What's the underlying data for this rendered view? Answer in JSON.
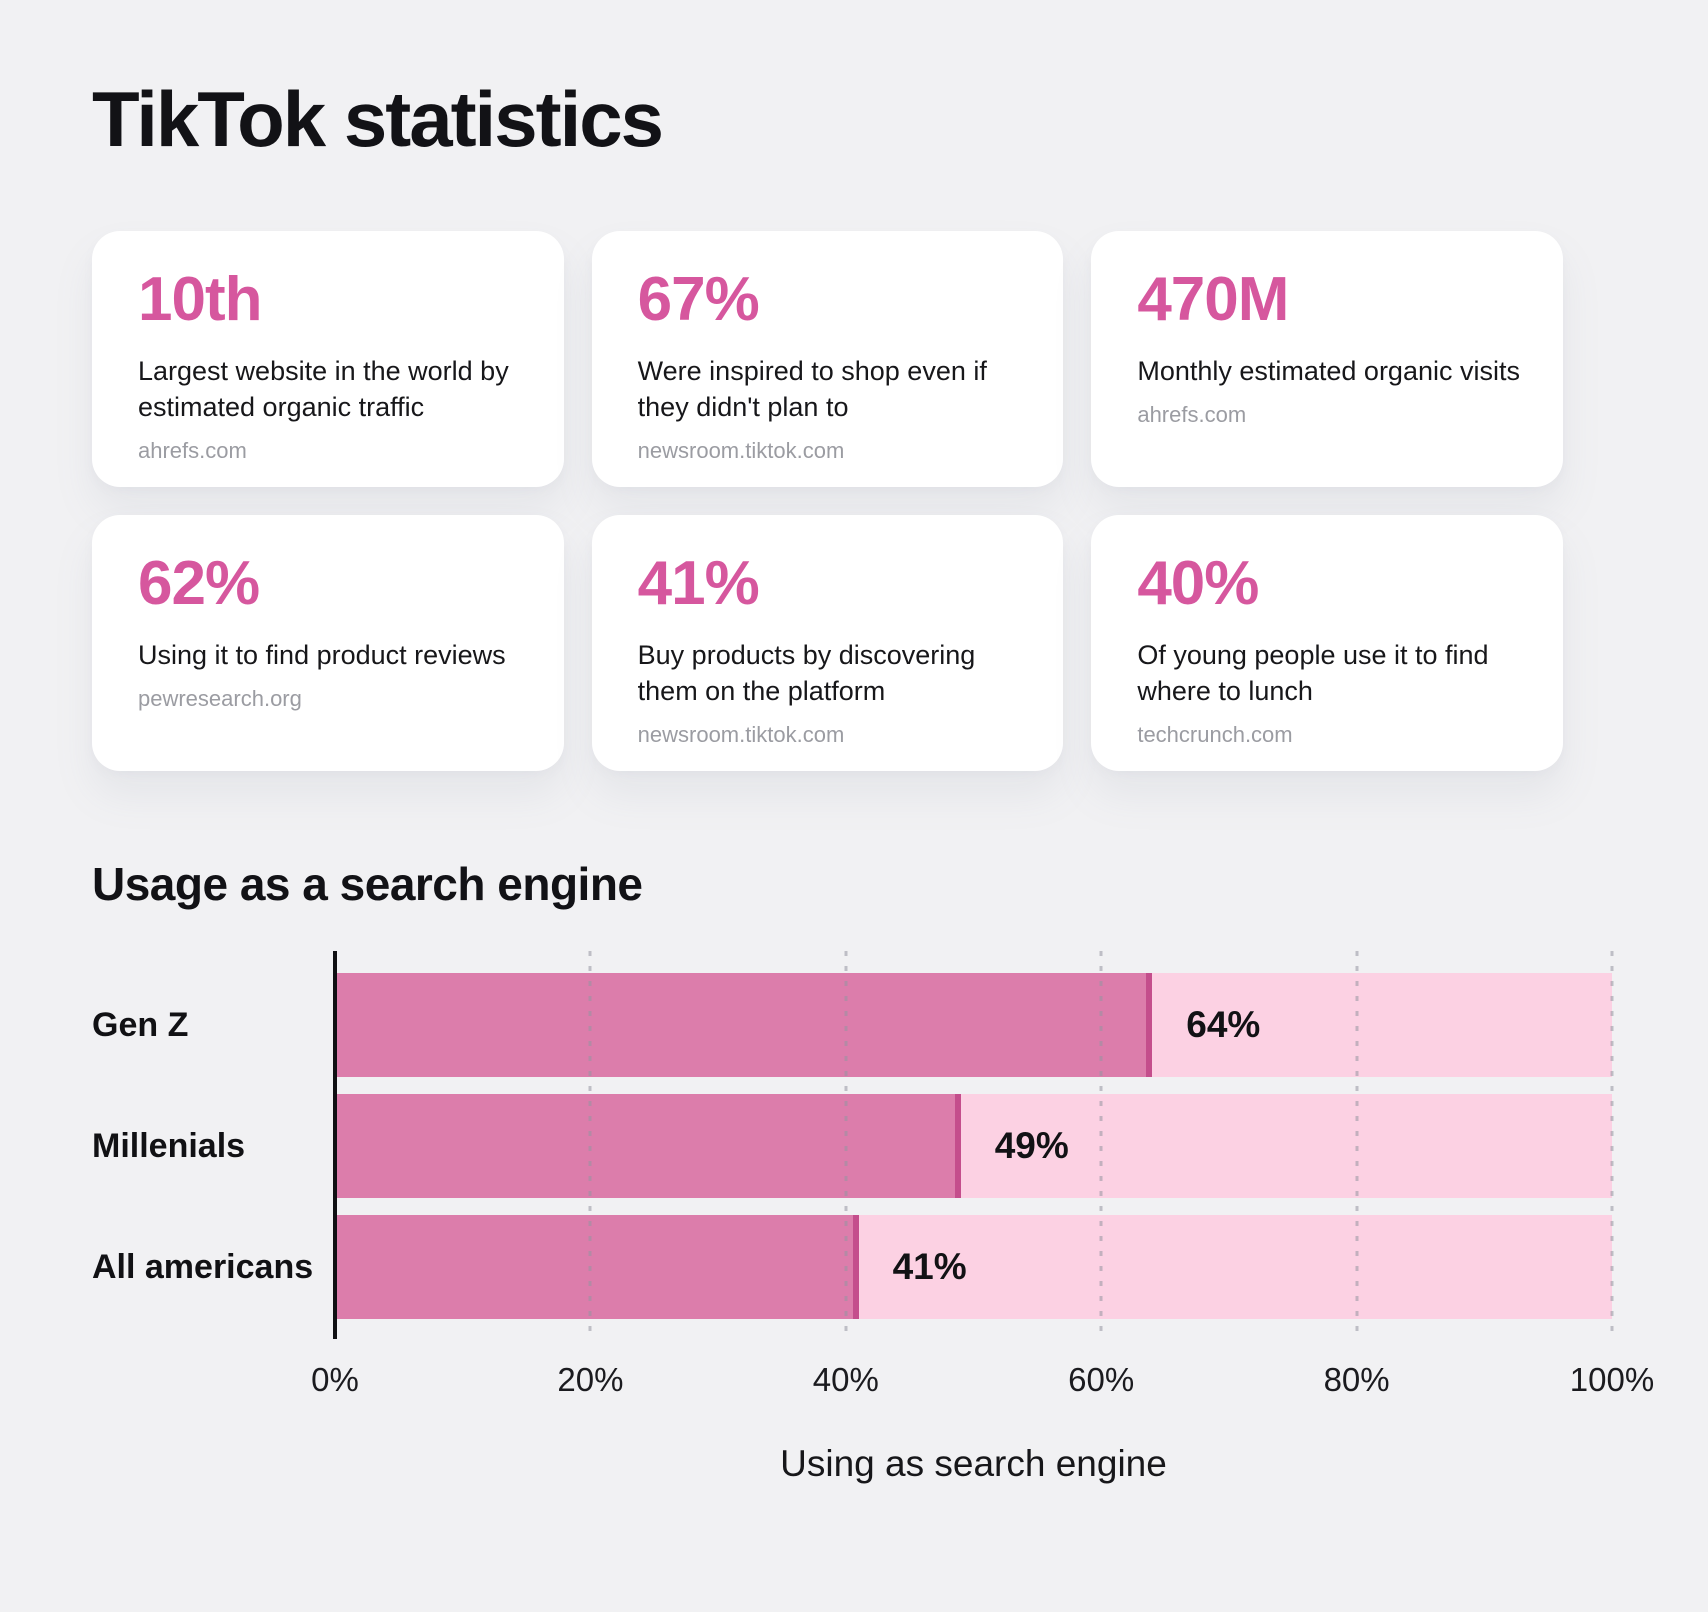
{
  "page_title": "TikTok statistics",
  "cards": [
    {
      "value": "10th",
      "description": "Largest website in the world by estimated organic traffic",
      "source": "ahrefs.com"
    },
    {
      "value": "67%",
      "description": "Were inspired to shop even if they didn't plan to",
      "source": "newsroom.tiktok.com"
    },
    {
      "value": "470M",
      "description": "Monthly estimated organic visits",
      "source": "ahrefs.com"
    },
    {
      "value": "62%",
      "description": "Using it to find product reviews",
      "source": "pewresearch.org"
    },
    {
      "value": "41%",
      "description": "Buy products by discovering them on the platform",
      "source": "newsroom.tiktok.com"
    },
    {
      "value": "40%",
      "description": "Of young people use it to find where to lunch",
      "source": "techcrunch.com"
    }
  ],
  "chart_section_title": "Usage as a search engine",
  "chart_data": {
    "type": "bar",
    "orientation": "horizontal",
    "title": "Usage as a search engine",
    "categories": [
      "Gen Z",
      "Millenials",
      "All americans"
    ],
    "values": [
      64,
      49,
      41
    ],
    "value_labels": [
      "64%",
      "49%",
      "41%"
    ],
    "xlabel": "Using as search engine",
    "ylabel": "",
    "xlim": [
      0,
      100
    ],
    "x_ticks": [
      "0%",
      "20%",
      "40%",
      "60%",
      "80%",
      "100%"
    ],
    "grid": "dotted vertical gridlines every 20%",
    "legend_position": "none",
    "colors": {
      "background": "#F1F1F3",
      "card_background": "#FFFFFF",
      "accent_number": "#D6579E",
      "bar_fill": "#DC7DAB",
      "bar_edge": "#C44E8C",
      "bar_track": "#FCD1E3",
      "source_text": "#9B9CA2",
      "text": "#17171A"
    }
  }
}
